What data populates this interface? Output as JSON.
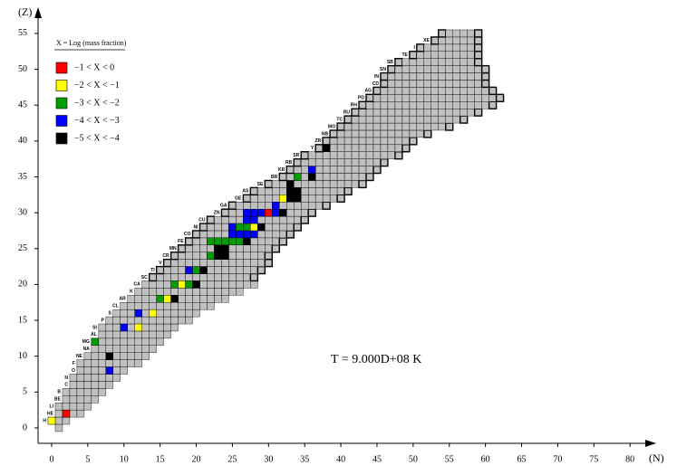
{
  "chart_data": {
    "type": "nuclide-chart",
    "x_label": "(N)",
    "y_label": "(Z)",
    "annotation": "T = 9.000D+08 K",
    "xlim": [
      -1.88,
      83.3
    ],
    "ylim": [
      -2.15,
      58.4
    ],
    "xticks": [
      0,
      5,
      10,
      15,
      20,
      25,
      30,
      35,
      40,
      45,
      50,
      55,
      60,
      65,
      70,
      75,
      80
    ],
    "yticks": [
      0,
      5,
      10,
      15,
      20,
      25,
      30,
      35,
      40,
      45,
      50,
      55
    ],
    "cell_color": "#c0c0c0",
    "legend": {
      "title": "X = Log (mass fraction)",
      "entries": [
        {
          "label": "−1 < X < 0",
          "color": "#ff0000"
        },
        {
          "label": "−2 < X < −1",
          "color": "#ffff00"
        },
        {
          "label": "−3 < X < −2",
          "color": "#00a000"
        },
        {
          "label": "−4 < X < −3",
          "color": "#0000ff"
        },
        {
          "label": "−5 < X < −4",
          "color": "#000000"
        }
      ]
    },
    "rows": [
      {
        "z": 0,
        "n_min": 1,
        "n_max": 1,
        "label": null
      },
      {
        "z": 1,
        "n_min": 0,
        "n_max": 2,
        "label": "H"
      },
      {
        "z": 2,
        "n_min": 1,
        "n_max": 4,
        "label": "HE"
      },
      {
        "z": 3,
        "n_min": 1,
        "n_max": 5,
        "label": "LI"
      },
      {
        "z": 4,
        "n_min": 2,
        "n_max": 6,
        "label": "BE"
      },
      {
        "z": 5,
        "n_min": 2,
        "n_max": 7,
        "label": "B"
      },
      {
        "z": 6,
        "n_min": 3,
        "n_max": 8,
        "label": "C"
      },
      {
        "z": 7,
        "n_min": 3,
        "n_max": 9,
        "label": "N"
      },
      {
        "z": 8,
        "n_min": 4,
        "n_max": 10,
        "label": "O"
      },
      {
        "z": 9,
        "n_min": 4,
        "n_max": 12,
        "label": "F"
      },
      {
        "z": 10,
        "n_min": 5,
        "n_max": 13,
        "label": "NE"
      },
      {
        "z": 11,
        "n_min": 6,
        "n_max": 14,
        "label": "NA"
      },
      {
        "z": 12,
        "n_min": 6,
        "n_max": 15,
        "label": "MG"
      },
      {
        "z": 13,
        "n_min": 7,
        "n_max": 16,
        "label": "AL"
      },
      {
        "z": 14,
        "n_min": 7,
        "n_max": 17,
        "label": "SI"
      },
      {
        "z": 15,
        "n_min": 8,
        "n_max": 19,
        "label": "P"
      },
      {
        "z": 16,
        "n_min": 9,
        "n_max": 20,
        "label": "S"
      },
      {
        "z": 17,
        "n_min": 10,
        "n_max": 22,
        "label": "CL"
      },
      {
        "z": 18,
        "n_min": 11,
        "n_max": 24,
        "label": "AR"
      },
      {
        "z": 19,
        "n_min": 12,
        "n_max": 26,
        "label": "K"
      },
      {
        "z": 20,
        "n_min": 13,
        "n_max": 28,
        "label": "CA"
      },
      {
        "z": 21,
        "n_min": 14,
        "n_max": 28,
        "label": "SC"
      },
      {
        "z": 22,
        "n_min": 15,
        "n_max": 29,
        "label": "TI"
      },
      {
        "z": 23,
        "n_min": 16,
        "n_max": 30,
        "label": "V"
      },
      {
        "z": 24,
        "n_min": 17,
        "n_max": 30,
        "label": "CR"
      },
      {
        "z": 25,
        "n_min": 18,
        "n_max": 31,
        "label": "MN"
      },
      {
        "z": 26,
        "n_min": 19,
        "n_max": 32,
        "label": "FE"
      },
      {
        "z": 27,
        "n_min": 20,
        "n_max": 33,
        "label": "CO"
      },
      {
        "z": 28,
        "n_min": 21,
        "n_max": 34,
        "label": "NI"
      },
      {
        "z": 29,
        "n_min": 22,
        "n_max": 35,
        "label": "CU"
      },
      {
        "z": 30,
        "n_min": 24,
        "n_max": 36,
        "label": "ZN"
      },
      {
        "z": 31,
        "n_min": 25,
        "n_max": 38,
        "label": "GA"
      },
      {
        "z": 32,
        "n_min": 27,
        "n_max": 40,
        "label": "GE"
      },
      {
        "z": 33,
        "n_min": 28,
        "n_max": 41,
        "label": "AS"
      },
      {
        "z": 34,
        "n_min": 30,
        "n_max": 43,
        "label": "SE"
      },
      {
        "z": 35,
        "n_min": 32,
        "n_max": 44,
        "label": "BR"
      },
      {
        "z": 36,
        "n_min": 33,
        "n_max": 45,
        "label": "KR"
      },
      {
        "z": 37,
        "n_min": 34,
        "n_max": 46,
        "label": "RB"
      },
      {
        "z": 38,
        "n_min": 35,
        "n_max": 48,
        "label": "SR"
      },
      {
        "z": 39,
        "n_min": 37,
        "n_max": 49,
        "label": "Y"
      },
      {
        "z": 40,
        "n_min": 38,
        "n_max": 50,
        "label": "ZR"
      },
      {
        "z": 41,
        "n_min": 39,
        "n_max": 52,
        "label": "NB"
      },
      {
        "z": 42,
        "n_min": 40,
        "n_max": 55,
        "label": "MO"
      },
      {
        "z": 43,
        "n_min": 41,
        "n_max": 57,
        "label": "TC"
      },
      {
        "z": 44,
        "n_min": 42,
        "n_max": 59,
        "label": "RU"
      },
      {
        "z": 45,
        "n_min": 43,
        "n_max": 61,
        "label": "RH"
      },
      {
        "z": 46,
        "n_min": 44,
        "n_max": 62,
        "label": "PD"
      },
      {
        "z": 47,
        "n_min": 45,
        "n_max": 61,
        "label": "AG"
      },
      {
        "z": 48,
        "n_min": 46,
        "n_max": 60,
        "label": "CD"
      },
      {
        "z": 49,
        "n_min": 46,
        "n_max": 60,
        "label": "IN"
      },
      {
        "z": 50,
        "n_min": 47,
        "n_max": 60,
        "label": "SN"
      },
      {
        "z": 51,
        "n_min": 48,
        "n_max": 59,
        "label": "SB"
      },
      {
        "z": 52,
        "n_min": 50,
        "n_max": 59,
        "label": "TE"
      },
      {
        "z": 53,
        "n_min": 51,
        "n_max": 59,
        "label": "I"
      },
      {
        "z": 54,
        "n_min": 53,
        "n_max": 59,
        "label": "XE"
      },
      {
        "z": 55,
        "n_min": 54,
        "n_max": 59,
        "label": null
      }
    ],
    "colored": [
      {
        "n": 0,
        "z": 1,
        "class": 1
      },
      {
        "n": 2,
        "z": 2,
        "class": 0
      },
      {
        "n": 8,
        "z": 8,
        "class": 3
      },
      {
        "n": 8,
        "z": 10,
        "class": 4
      },
      {
        "n": 6,
        "z": 12,
        "class": 2
      },
      {
        "n": 10,
        "z": 14,
        "class": 3
      },
      {
        "n": 12,
        "z": 14,
        "class": 1
      },
      {
        "n": 12,
        "z": 16,
        "class": 3
      },
      {
        "n": 14,
        "z": 16,
        "class": 1
      },
      {
        "n": 15,
        "z": 18,
        "class": 2
      },
      {
        "n": 16,
        "z": 18,
        "class": 1
      },
      {
        "n": 17,
        "z": 18,
        "class": 4
      },
      {
        "n": 17,
        "z": 20,
        "class": 2
      },
      {
        "n": 18,
        "z": 20,
        "class": 1
      },
      {
        "n": 19,
        "z": 20,
        "class": 2
      },
      {
        "n": 20,
        "z": 20,
        "class": 4
      },
      {
        "n": 19,
        "z": 22,
        "class": 3
      },
      {
        "n": 20,
        "z": 22,
        "class": 2
      },
      {
        "n": 21,
        "z": 22,
        "class": 4
      },
      {
        "n": 22,
        "z": 24,
        "class": 2
      },
      {
        "n": 23,
        "z": 24,
        "class": 2
      },
      {
        "n": 23,
        "z": 25,
        "class": 4
      },
      {
        "n": 24,
        "z": 25,
        "class": 4
      },
      {
        "n": 23,
        "z": 24,
        "class": 4
      },
      {
        "n": 24,
        "z": 24,
        "class": 4
      },
      {
        "n": 22,
        "z": 26,
        "class": 2
      },
      {
        "n": 23,
        "z": 26,
        "class": 2
      },
      {
        "n": 24,
        "z": 26,
        "class": 2
      },
      {
        "n": 25,
        "z": 26,
        "class": 2
      },
      {
        "n": 26,
        "z": 26,
        "class": 2
      },
      {
        "n": 27,
        "z": 26,
        "class": 4
      },
      {
        "n": 25,
        "z": 27,
        "class": 3
      },
      {
        "n": 26,
        "z": 27,
        "class": 3
      },
      {
        "n": 27,
        "z": 27,
        "class": 3
      },
      {
        "n": 28,
        "z": 27,
        "class": 3
      },
      {
        "n": 25,
        "z": 28,
        "class": 3
      },
      {
        "n": 26,
        "z": 28,
        "class": 2
      },
      {
        "n": 27,
        "z": 28,
        "class": 2
      },
      {
        "n": 28,
        "z": 28,
        "class": 1
      },
      {
        "n": 29,
        "z": 28,
        "class": 4
      },
      {
        "n": 27,
        "z": 29,
        "class": 3
      },
      {
        "n": 28,
        "z": 29,
        "class": 3
      },
      {
        "n": 27,
        "z": 30,
        "class": 3
      },
      {
        "n": 28,
        "z": 30,
        "class": 3
      },
      {
        "n": 29,
        "z": 30,
        "class": 3
      },
      {
        "n": 30,
        "z": 30,
        "class": 0
      },
      {
        "n": 31,
        "z": 30,
        "class": 3
      },
      {
        "n": 32,
        "z": 30,
        "class": 4
      },
      {
        "n": 31,
        "z": 31,
        "class": 3
      },
      {
        "n": 32,
        "z": 32,
        "class": 1
      },
      {
        "n": 33,
        "z": 32,
        "class": 4
      },
      {
        "n": 34,
        "z": 32,
        "class": 4
      },
      {
        "n": 33,
        "z": 33,
        "class": 4
      },
      {
        "n": 34,
        "z": 33,
        "class": 4
      },
      {
        "n": 33,
        "z": 34,
        "class": 4
      },
      {
        "n": 34,
        "z": 35,
        "class": 2
      },
      {
        "n": 36,
        "z": 35,
        "class": 4
      },
      {
        "n": 36,
        "z": 36,
        "class": 3
      },
      {
        "n": 38,
        "z": 39,
        "class": 4
      }
    ]
  }
}
